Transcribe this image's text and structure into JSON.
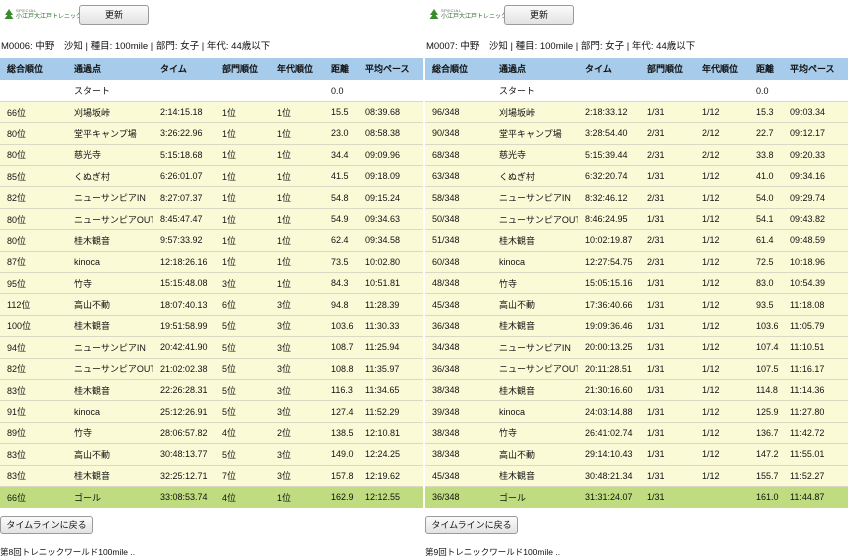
{
  "colors": {
    "header_bg": "#a7cbea",
    "row_bg": "#fafad7",
    "goal_bg": "#bfdc80"
  },
  "columns": [
    "総合順位",
    "通過点",
    "タイム",
    "部門順位",
    "年代順位",
    "距離",
    "平均ペース"
  ],
  "panels": [
    {
      "logo_small": "SPECIAL",
      "logo_text": "小江戸大江戸トレニックワールド",
      "refresh_label": "更新",
      "runner": "M0006: 中野　沙知 | 種目: 100mile | 部門: 女子 | 年代: 44歳以下",
      "start": [
        "",
        "スタート",
        "",
        "",
        "",
        "0.0",
        ""
      ],
      "rows": [
        [
          "66位",
          "刈場坂峠",
          "2:14:15.18",
          "1位",
          "1位",
          "15.5",
          "08:39.68"
        ],
        [
          "80位",
          "堂平キャンプ場",
          "3:26:22.96",
          "1位",
          "1位",
          "23.0",
          "08:58.38"
        ],
        [
          "80位",
          "慈光寺",
          "5:15:18.68",
          "1位",
          "1位",
          "34.4",
          "09:09.96"
        ],
        [
          "85位",
          "くぬぎ村",
          "6:26:01.07",
          "1位",
          "1位",
          "41.5",
          "09:18.09"
        ],
        [
          "82位",
          "ニューサンピアIN",
          "8:27:07.37",
          "1位",
          "1位",
          "54.8",
          "09:15.24"
        ],
        [
          "80位",
          "ニューサンピアOUT",
          "8:45:47.47",
          "1位",
          "1位",
          "54.9",
          "09:34.63"
        ],
        [
          "80位",
          "桂木観音",
          "9:57:33.92",
          "1位",
          "1位",
          "62.4",
          "09:34.58"
        ],
        [
          "87位",
          "kinoca",
          "12:18:26.16",
          "1位",
          "1位",
          "73.5",
          "10:02.80"
        ],
        [
          "95位",
          "竹寺",
          "15:15:48.08",
          "3位",
          "1位",
          "84.3",
          "10:51.81"
        ],
        [
          "112位",
          "高山不動",
          "18:07:40.13",
          "6位",
          "3位",
          "94.8",
          "11:28.39"
        ],
        [
          "100位",
          "桂木観音",
          "19:51:58.99",
          "5位",
          "3位",
          "103.6",
          "11:30.33"
        ],
        [
          "94位",
          "ニューサンピアIN",
          "20:42:41.90",
          "5位",
          "3位",
          "108.7",
          "11:25.94"
        ],
        [
          "82位",
          "ニューサンピアOUT",
          "21:02:02.38",
          "5位",
          "3位",
          "108.8",
          "11:35.97"
        ],
        [
          "83位",
          "桂木観音",
          "22:26:28.31",
          "5位",
          "3位",
          "116.3",
          "11:34.65"
        ],
        [
          "91位",
          "kinoca",
          "25:12:26.91",
          "5位",
          "3位",
          "127.4",
          "11:52.29"
        ],
        [
          "89位",
          "竹寺",
          "28:06:57.82",
          "4位",
          "2位",
          "138.5",
          "12:10.81"
        ],
        [
          "83位",
          "高山不動",
          "30:48:13.77",
          "5位",
          "3位",
          "149.0",
          "12:24.25"
        ],
        [
          "83位",
          "桂木観音",
          "32:25:12.71",
          "7位",
          "3位",
          "157.8",
          "12:19.62"
        ]
      ],
      "goal": [
        "66位",
        "ゴール",
        "33:08:53.74",
        "4位",
        "1位",
        "162.9",
        "12:12.55"
      ],
      "timeline_label": "タイムラインに戻る",
      "footer": "第8回トレニックワールド100mile .."
    },
    {
      "logo_small": "SPECIAL",
      "logo_text": "小江戸大江戸トレニックワールド",
      "refresh_label": "更新",
      "runner": "M0007: 中野　沙知 | 種目: 100mile | 部門: 女子 | 年代: 44歳以下",
      "start": [
        "",
        "スタート",
        "",
        "",
        "",
        "0.0",
        ""
      ],
      "rows": [
        [
          "96/348",
          "刈場坂峠",
          "2:18:33.12",
          "1/31",
          "1/12",
          "15.3",
          "09:03.34"
        ],
        [
          "90/348",
          "堂平キャンプ場",
          "3:28:54.40",
          "2/31",
          "2/12",
          "22.7",
          "09:12.17"
        ],
        [
          "68/348",
          "慈光寺",
          "5:15:39.44",
          "2/31",
          "2/12",
          "33.8",
          "09:20.33"
        ],
        [
          "63/348",
          "くぬぎ村",
          "6:32:20.74",
          "1/31",
          "1/12",
          "41.0",
          "09:34.16"
        ],
        [
          "58/348",
          "ニューサンピアIN",
          "8:32:46.12",
          "2/31",
          "1/12",
          "54.0",
          "09:29.74"
        ],
        [
          "50/348",
          "ニューサンピアOUT",
          "8:46:24.95",
          "1/31",
          "1/12",
          "54.1",
          "09:43.82"
        ],
        [
          "51/348",
          "桂木観音",
          "10:02:19.87",
          "2/31",
          "1/12",
          "61.4",
          "09:48.59"
        ],
        [
          "60/348",
          "kinoca",
          "12:27:54.75",
          "2/31",
          "1/12",
          "72.5",
          "10:18.96"
        ],
        [
          "48/348",
          "竹寺",
          "15:05:15.16",
          "1/31",
          "1/12",
          "83.0",
          "10:54.39"
        ],
        [
          "45/348",
          "高山不動",
          "17:36:40.66",
          "1/31",
          "1/12",
          "93.5",
          "11:18.08"
        ],
        [
          "36/348",
          "桂木観音",
          "19:09:36.46",
          "1/31",
          "1/12",
          "103.6",
          "11:05.79"
        ],
        [
          "34/348",
          "ニューサンピアIN",
          "20:00:13.25",
          "1/31",
          "1/12",
          "107.4",
          "11:10.51"
        ],
        [
          "36/348",
          "ニューサンピアOUT",
          "20:11:28.51",
          "1/31",
          "1/12",
          "107.5",
          "11:16.17"
        ],
        [
          "38/348",
          "桂木観音",
          "21:30:16.60",
          "1/31",
          "1/12",
          "114.8",
          "11:14.36"
        ],
        [
          "39/348",
          "kinoca",
          "24:03:14.88",
          "1/31",
          "1/12",
          "125.9",
          "11:27.80"
        ],
        [
          "38/348",
          "竹寺",
          "26:41:02.74",
          "1/31",
          "1/12",
          "136.7",
          "11:42.72"
        ],
        [
          "38/348",
          "高山不動",
          "29:14:10.43",
          "1/31",
          "1/12",
          "147.2",
          "11:55.01"
        ],
        [
          "45/348",
          "桂木観音",
          "30:48:21.34",
          "1/31",
          "1/12",
          "155.7",
          "11:52.27"
        ]
      ],
      "goal": [
        "36/348",
        "ゴール",
        "31:31:24.07",
        "1/31",
        "",
        "161.0",
        "11:44.87"
      ],
      "timeline_label": "タイムラインに戻る",
      "footer": "第9回トレニックワールド100mile .."
    }
  ]
}
